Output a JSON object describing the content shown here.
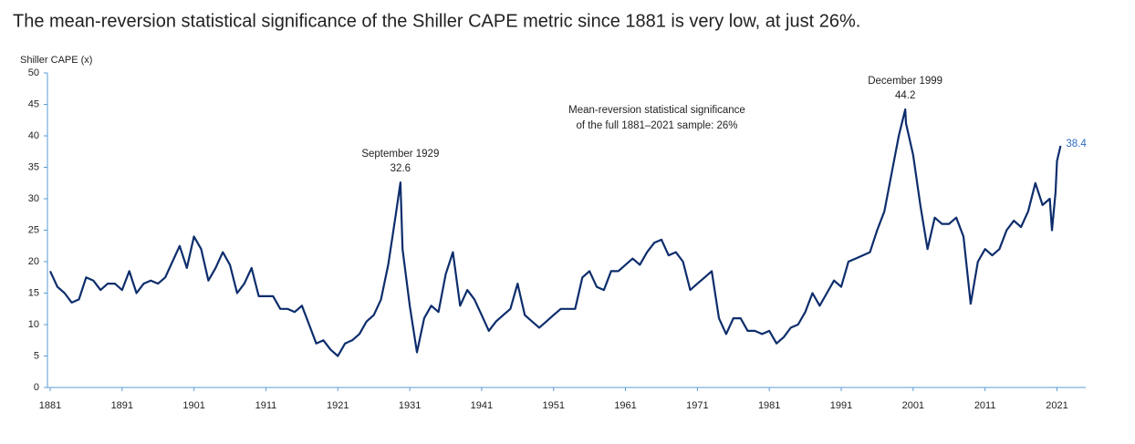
{
  "chart_data": {
    "type": "line",
    "subtitle": "The mean-reversion statistical significance of the Shiller CAPE metric since 1881 is very low, at just 26%.",
    "ylabel": "Shiller CAPE (x)",
    "color": "#0d2d6c",
    "axis_color": "#5b9bd5",
    "end_label_color": "#2e6bc4",
    "x": [
      1881,
      1882,
      1883,
      1884,
      1885,
      1886,
      1887,
      1888,
      1889,
      1890,
      1891,
      1892,
      1893,
      1894,
      1895,
      1896,
      1897,
      1898,
      1899,
      1900,
      1901,
      1902,
      1903,
      1904,
      1905,
      1906,
      1907,
      1908,
      1909,
      1910,
      1911,
      1912,
      1913,
      1914,
      1915,
      1916,
      1917,
      1918,
      1919,
      1920,
      1921,
      1922,
      1923,
      1924,
      1925,
      1926,
      1927,
      1928,
      1929,
      1929.7,
      1930,
      1931,
      1932,
      1933,
      1934,
      1935,
      1936,
      1937,
      1938,
      1939,
      1940,
      1941,
      1942,
      1943,
      1944,
      1945,
      1946,
      1947,
      1948,
      1949,
      1950,
      1951,
      1952,
      1953,
      1954,
      1955,
      1956,
      1957,
      1958,
      1959,
      1960,
      1961,
      1962,
      1963,
      1964,
      1965,
      1966,
      1967,
      1968,
      1969,
      1970,
      1971,
      1972,
      1973,
      1974,
      1975,
      1976,
      1977,
      1978,
      1979,
      1980,
      1981,
      1982,
      1983,
      1984,
      1985,
      1986,
      1987,
      1988,
      1989,
      1990,
      1991,
      1992,
      1993,
      1994,
      1995,
      1996,
      1997,
      1998,
      1999,
      1999.9,
      2000,
      2001,
      2002,
      2003,
      2004,
      2005,
      2006,
      2007,
      2008,
      2009,
      2010,
      2011,
      2012,
      2013,
      2014,
      2015,
      2016,
      2017,
      2018,
      2019,
      2020,
      2020.3,
      2020.8,
      2021,
      2021.5
    ],
    "values": [
      18.5,
      16,
      15,
      13.5,
      14,
      17.5,
      17,
      15.5,
      16.5,
      16.5,
      15.5,
      18.5,
      15,
      16.5,
      17,
      16.5,
      17.5,
      20,
      22.5,
      19,
      24,
      22,
      17,
      19,
      21.5,
      19.5,
      15,
      16.5,
      19,
      14.5,
      14.5,
      14.5,
      12.5,
      12.5,
      12,
      13,
      10,
      7,
      7.5,
      6,
      5,
      7,
      7.5,
      8.5,
      10.5,
      11.5,
      14,
      19.5,
      27,
      32.6,
      22,
      13,
      5.6,
      11,
      13,
      12,
      18,
      21.5,
      13,
      15.5,
      14,
      11.5,
      9,
      10.5,
      11.5,
      12.5,
      16.5,
      11.5,
      10.5,
      9.5,
      10.5,
      11.5,
      12.5,
      12.5,
      12.5,
      17.5,
      18.5,
      16,
      15.5,
      18.5,
      18.5,
      19.5,
      20.5,
      19.5,
      21.5,
      23,
      23.5,
      21,
      21.5,
      20,
      15.5,
      16.5,
      17.5,
      18.5,
      11,
      8.5,
      11,
      11,
      9,
      9,
      8.5,
      9,
      7,
      8,
      9.5,
      10,
      12,
      15,
      13,
      15,
      17,
      16,
      20,
      20.5,
      21,
      21.5,
      25,
      28,
      34,
      40,
      44.2,
      42,
      37,
      29,
      22,
      27,
      26,
      26,
      27,
      24,
      13.3,
      20,
      22,
      21,
      22,
      25,
      26.5,
      25.5,
      28,
      32.5,
      29,
      30,
      25,
      31,
      36,
      38.4
    ],
    "xlim": [
      1881,
      2025
    ],
    "ylim": [
      0,
      50
    ],
    "xticks": [
      1881,
      1891,
      1901,
      1911,
      1921,
      1931,
      1941,
      1951,
      1961,
      1971,
      1981,
      1991,
      2001,
      2011,
      2021
    ],
    "yticks": [
      0,
      5,
      10,
      15,
      20,
      25,
      30,
      35,
      40,
      45,
      50
    ],
    "annotations": [
      {
        "text": "September 1929",
        "x": 1929.7,
        "y": 32.6
      },
      {
        "text": "December 1999",
        "x": 1999.9,
        "y": 44.2
      }
    ],
    "note": [
      "Mean-reversion statistical significance",
      "of the full 1881–2021 sample: 26%"
    ]
  }
}
